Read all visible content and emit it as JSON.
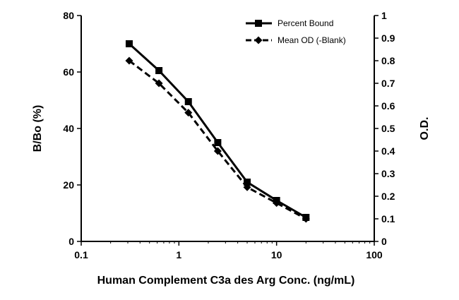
{
  "chart_data": {
    "type": "line",
    "title": "",
    "xlabel": "Human Complement C3a des Arg Conc. (ng/mL)",
    "ylabel_left": "B/Bo (%)",
    "ylabel_right": "O.D.",
    "x_scale": "log",
    "xlim": [
      0.1,
      100
    ],
    "ylim_left": [
      0,
      80
    ],
    "ylim_right": [
      0,
      1
    ],
    "x_ticks": [
      "0.1",
      "1",
      "10",
      "100"
    ],
    "y_ticks_left": [
      "0",
      "20",
      "40",
      "60",
      "80"
    ],
    "y_ticks_right": [
      "0",
      "0.1",
      "0.2",
      "0.3",
      "0.4",
      "0.5",
      "0.6",
      "0.7",
      "0.8",
      "0.9",
      "1"
    ],
    "legend_position": "top-right",
    "grid": false,
    "series": [
      {
        "name": "Percent Bound",
        "axis": "left",
        "marker": "square",
        "line_style": "solid",
        "color": "#000000",
        "x": [
          0.31,
          0.625,
          1.25,
          2.5,
          5,
          10,
          20
        ],
        "y": [
          70,
          60.5,
          49.5,
          35,
          21,
          14.5,
          8.5
        ]
      },
      {
        "name": "Mean OD (-Blank)",
        "axis": "right",
        "marker": "diamond",
        "line_style": "dashed",
        "color": "#000000",
        "x": [
          0.31,
          0.625,
          1.25,
          2.5,
          5,
          10,
          20
        ],
        "y": [
          0.8,
          0.7,
          0.57,
          0.4,
          0.24,
          0.17,
          0.1
        ]
      }
    ]
  }
}
